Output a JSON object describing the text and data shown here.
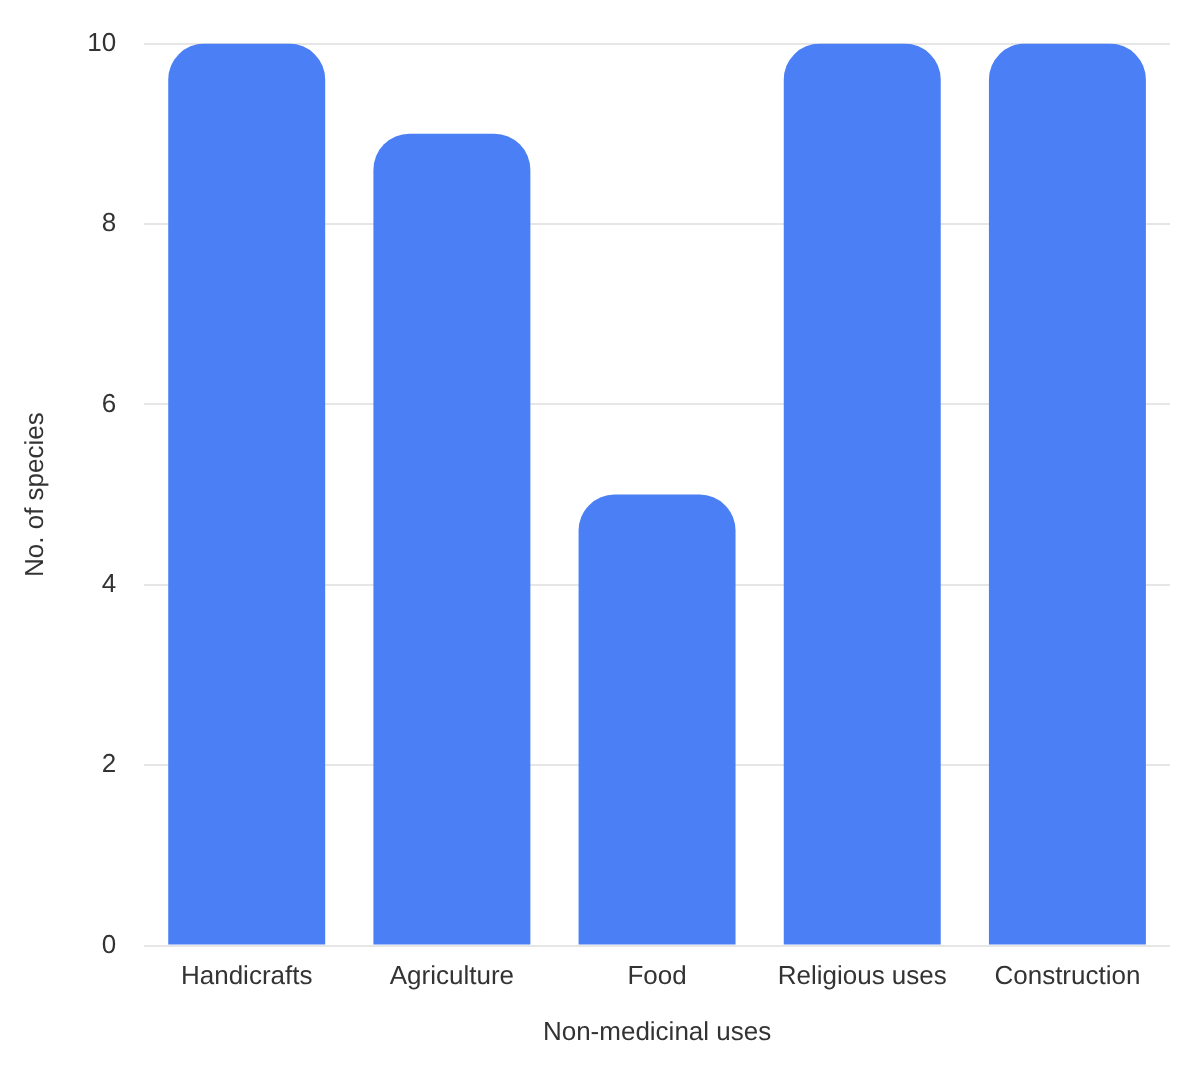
{
  "chart_data": {
    "type": "bar",
    "xlabel": "Non-medicinal uses",
    "ylabel": "No. of species",
    "categories": [
      "Handicrafts",
      "Agriculture",
      "Food",
      "Religious uses",
      "Construction"
    ],
    "values": [
      10,
      9,
      5,
      10,
      10
    ],
    "color": "#4a7ff5",
    "ylim": [
      0,
      10
    ],
    "yticks": [
      0,
      2,
      4,
      6,
      8,
      10
    ],
    "grid": "y",
    "legend": false
  }
}
